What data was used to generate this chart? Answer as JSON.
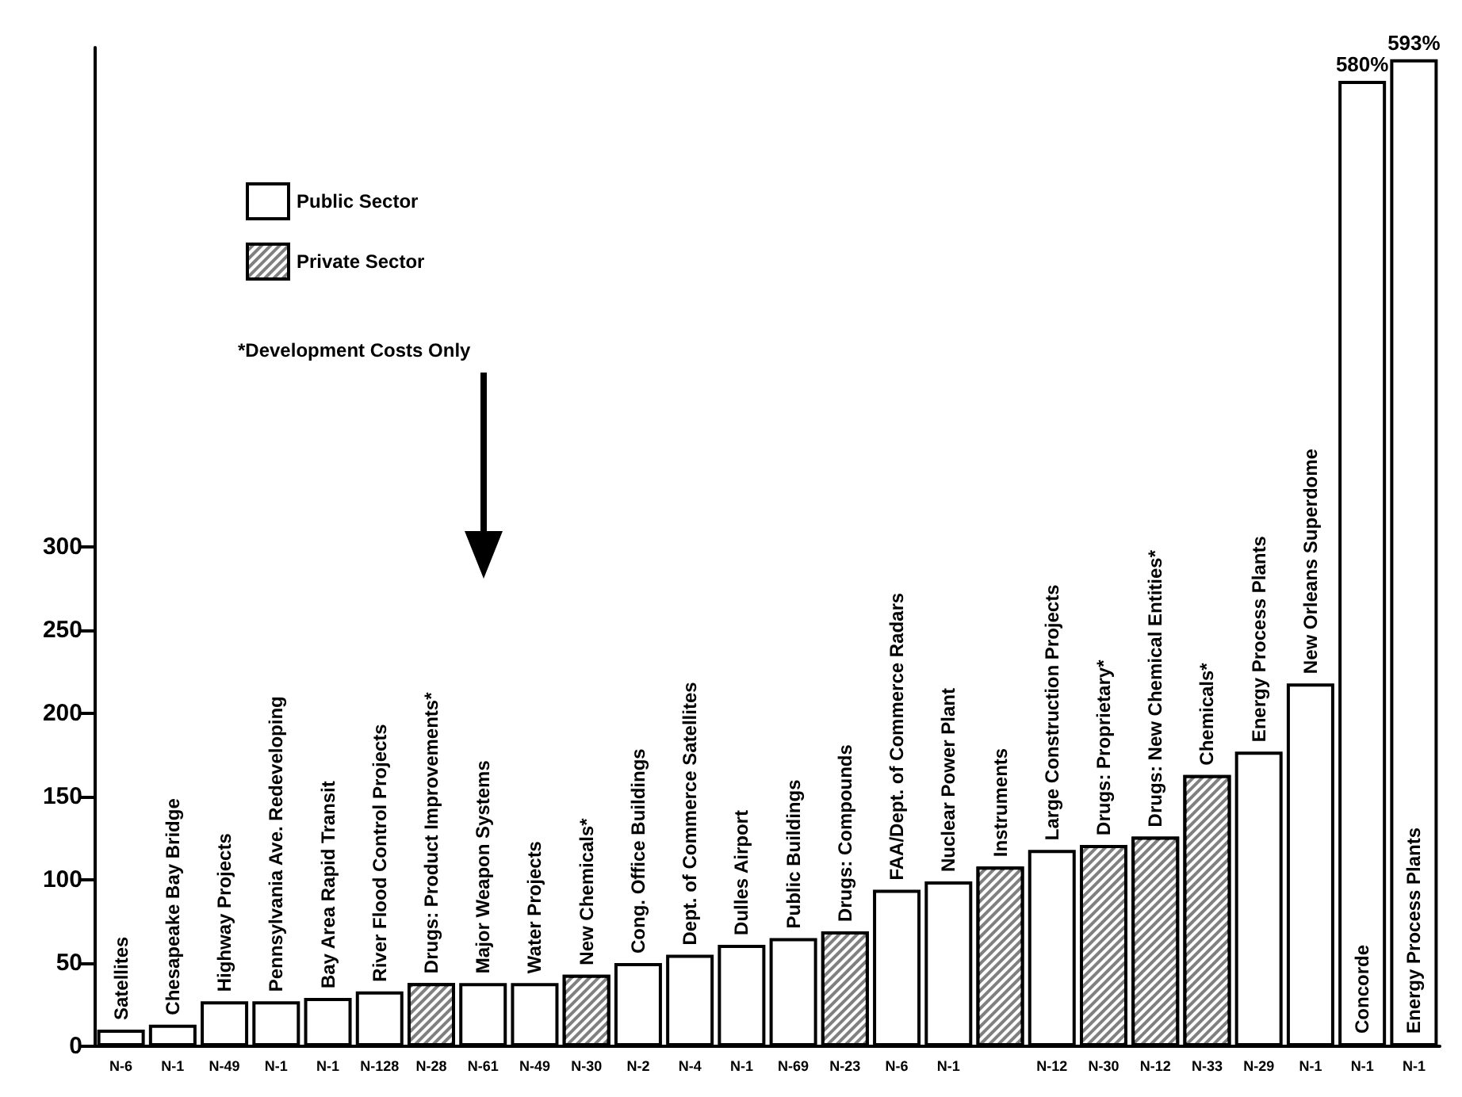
{
  "chart_data": {
    "type": "bar",
    "categories": [
      "N-6",
      "N-1",
      "N-49",
      "N-1",
      "N-1",
      "N-128",
      "N-28",
      "N-61",
      "N-49",
      "N-30",
      "N-2",
      "N-4",
      "N-1",
      "N-69",
      "N-23",
      "N-6",
      "N-1",
      null,
      "N-12",
      "N-30",
      "N-12",
      "N-33",
      "N-29",
      "N-1",
      "N-1",
      "N-1"
    ],
    "series": [
      {
        "name": "Public Sector",
        "color": "#ffffff",
        "values": [
          10,
          13,
          27,
          27,
          29,
          33,
          null,
          38,
          38,
          null,
          50,
          55,
          61,
          65,
          null,
          94,
          99,
          null,
          118,
          null,
          null,
          null,
          177,
          218,
          580,
          593
        ]
      },
      {
        "name": "Private Sector",
        "color": "#808080",
        "values": [
          null,
          null,
          null,
          null,
          null,
          null,
          38,
          null,
          null,
          43,
          null,
          null,
          null,
          null,
          69,
          null,
          null,
          108,
          null,
          121,
          126,
          163,
          null,
          null,
          null,
          null
        ]
      }
    ],
    "value_labels": [
      "Satellites",
      "Chesapeake Bay Bridge",
      "Highway Projects",
      "Pennsylvania Ave. Redeveloping",
      "Bay Area Rapid Transit",
      "River Flood Control Projects",
      "Drugs: Product Improvements*",
      "Major Weapon Systems",
      "Water Projects",
      "New Chemicals*",
      "Cong. Office Buildings",
      "Dept. of Commerce Satellites",
      "Dulles Airport",
      "Public Buildings",
      "Drugs: Compounds",
      "FAA/Dept. of Commerce Radars",
      "Nuclear Power Plant",
      "Instruments",
      "Large Construction Projects",
      "Drugs: Proprietary*",
      "Drugs: New Chemical Entities*",
      "Chemicals*",
      "Energy Process Plants",
      "New Orleans Superdome",
      "Concorde",
      "Energy Process Plants"
    ],
    "annotations": [
      "*Development Costs Only",
      "580%",
      "593%"
    ],
    "ylim": [
      0,
      600
    ],
    "yticks": [
      0,
      50,
      100,
      150,
      200,
      250,
      300
    ],
    "grid": false,
    "legend": "top left"
  }
}
